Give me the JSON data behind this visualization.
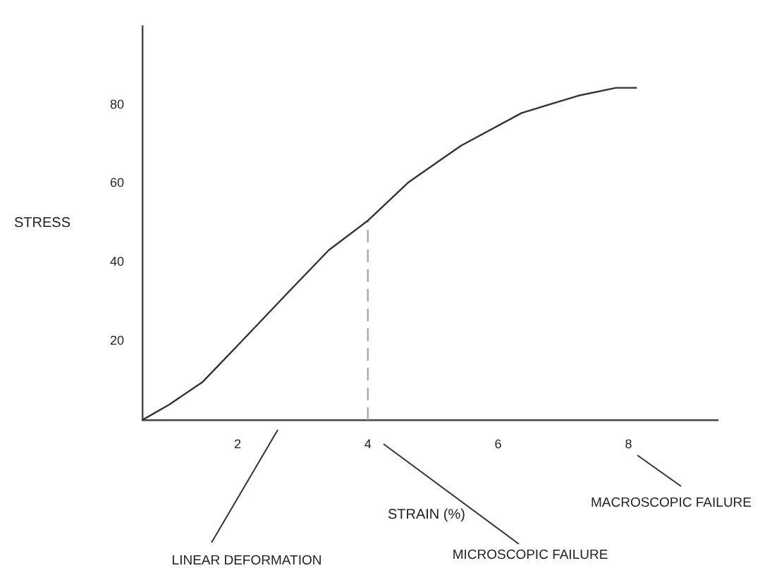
{
  "chart_data": {
    "type": "line",
    "xlabel": "STRAIN (%)",
    "ylabel": "STRESS",
    "xlim": [
      0.54,
      9.37
    ],
    "xticks": [
      2,
      4,
      6,
      8
    ],
    "ylim": [
      0,
      100
    ],
    "yticks": [
      20,
      40,
      60,
      80
    ],
    "marker": "none",
    "annotations": [
      "LINEAR DEFORMATION",
      "MICROSCOPIC FAILURE",
      "MACROSCOPIC FAILURE"
    ],
    "series": [
      {
        "color": "#333333",
        "x": [
          0.54,
          0.95,
          1.46,
          2.03,
          2.76,
          3.4,
          4,
          4.63,
          5.43,
          6.36,
          7.23,
          7.81,
          8.13
        ],
        "values": [
          0,
          3.9,
          9.6,
          19.4,
          32.1,
          43.1,
          50.6,
          60.4,
          69.6,
          77.9,
          82.3,
          84.3,
          84.3
        ]
      },
      {
        "color": "#aaaaaa",
        "line_style": "dashed",
        "x": [
          4,
          4
        ],
        "values": [
          0,
          50.6
        ]
      }
    ]
  }
}
